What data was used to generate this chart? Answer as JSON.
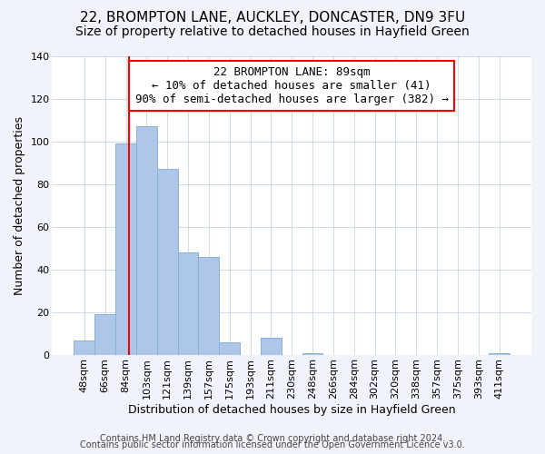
{
  "title": "22, BROMPTON LANE, AUCKLEY, DONCASTER, DN9 3FU",
  "subtitle": "Size of property relative to detached houses in Hayfield Green",
  "xlabel": "Distribution of detached houses by size in Hayfield Green",
  "ylabel": "Number of detached properties",
  "bar_labels": [
    "48sqm",
    "66sqm",
    "84sqm",
    "103sqm",
    "121sqm",
    "139sqm",
    "157sqm",
    "175sqm",
    "193sqm",
    "211sqm",
    "230sqm",
    "248sqm",
    "266sqm",
    "284sqm",
    "302sqm",
    "320sqm",
    "338sqm",
    "357sqm",
    "375sqm",
    "393sqm",
    "411sqm"
  ],
  "bar_heights": [
    7,
    19,
    99,
    107,
    87,
    48,
    46,
    6,
    0,
    8,
    0,
    1,
    0,
    0,
    0,
    0,
    0,
    0,
    0,
    0,
    1
  ],
  "bar_color": "#aec6e8",
  "bar_edge_color": "#aec6e8",
  "vline_color": "red",
  "annotation_line1": "22 BROMPTON LANE: 89sqm",
  "annotation_line2": "← 10% of detached houses are smaller (41)",
  "annotation_line3": "90% of semi-detached houses are larger (382) →",
  "annotation_box_color": "white",
  "annotation_box_edge": "red",
  "ylim": [
    0,
    140
  ],
  "yticks": [
    0,
    20,
    40,
    60,
    80,
    100,
    120,
    140
  ],
  "footer1": "Contains HM Land Registry data © Crown copyright and database right 2024.",
  "footer2": "Contains public sector information licensed under the Open Government Licence v3.0.",
  "bg_color": "#f0f4fa",
  "plot_bg_color": "white",
  "title_fontsize": 11,
  "subtitle_fontsize": 10,
  "axis_label_fontsize": 9,
  "tick_fontsize": 8,
  "annotation_fontsize": 9,
  "footer_fontsize": 7
}
